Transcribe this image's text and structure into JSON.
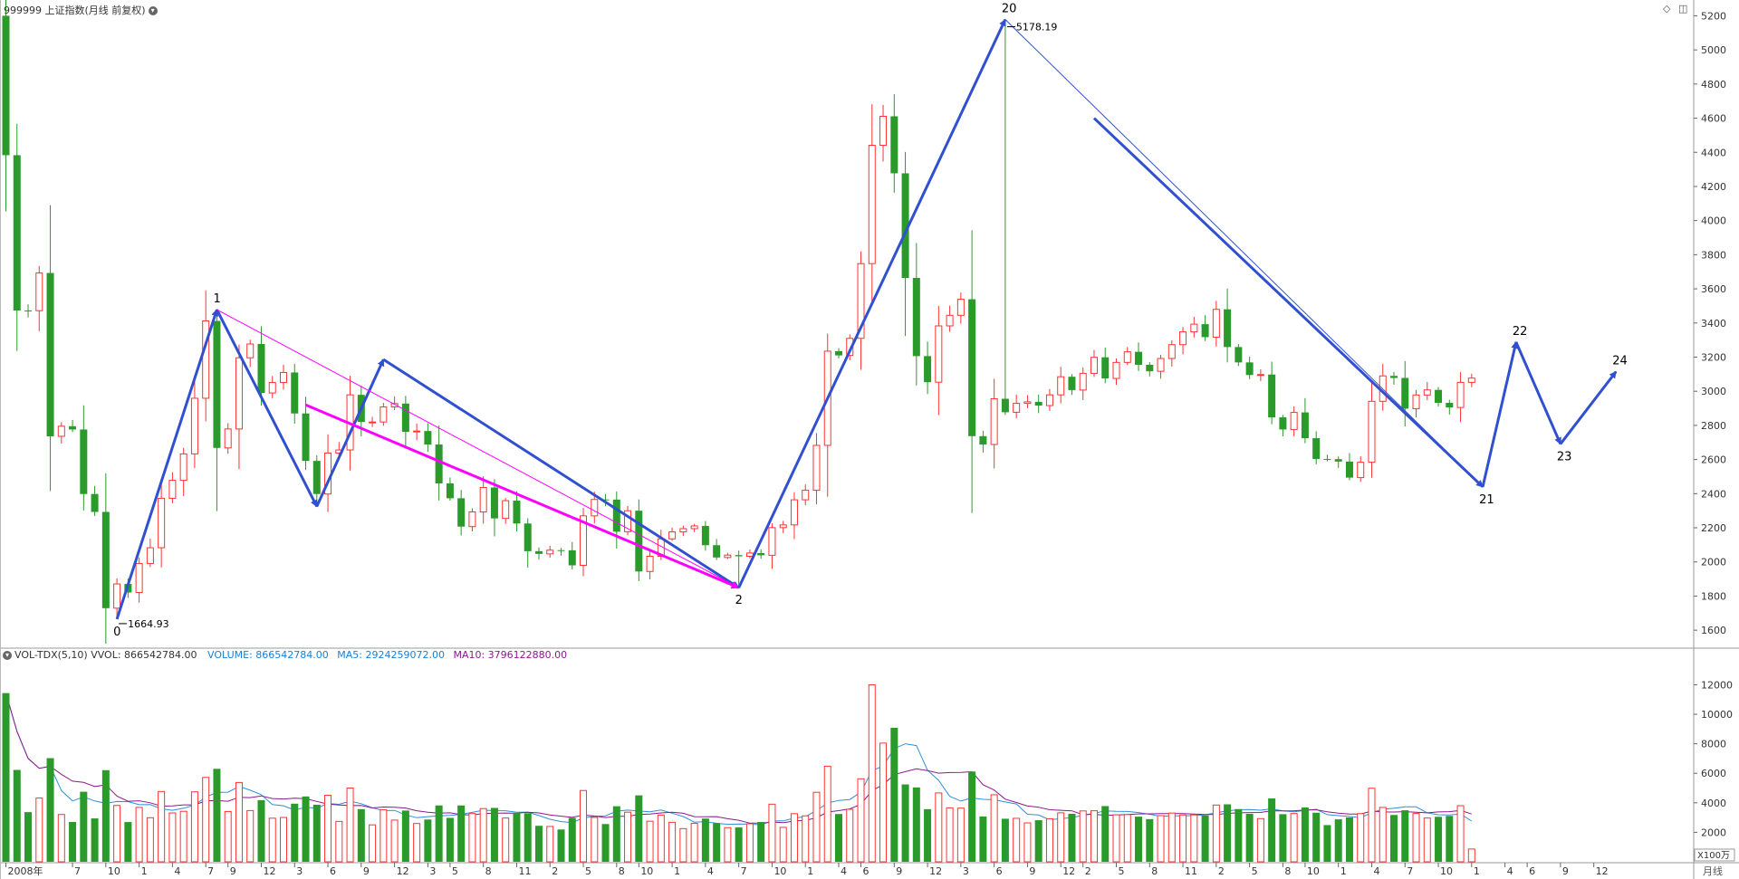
{
  "header": {
    "title": "999999 上证指数(月线 前复权)",
    "dropdown_icon": "chevron-down-icon"
  },
  "vol_header": {
    "name": "VOL-TDX(5,10)",
    "vvol": "VVOL: 866542784.00",
    "volume": "VOLUME: 866542784.00",
    "ma5": "MA5: 2924259072.00",
    "ma10": "MA10: 3796122880.00"
  },
  "colors": {
    "up": "#ff3333",
    "down": "#2a9a2a",
    "wave_blue": "#3050d0",
    "magenta": "#ff00ff",
    "vol_label": "#1a7fd1",
    "ma5": "#2f8fd8",
    "ma10": "#8b1a8b"
  },
  "corner_icons": {
    "diamond": "diamond-icon",
    "panel": "panel-icon"
  },
  "bottom_right_label": "月线",
  "vol_unit": "X100万",
  "chart_data": {
    "type": "candlestick",
    "price_axis": {
      "ticks": [
        "1600",
        "1800",
        "2000",
        "2200",
        "2400",
        "2600",
        "2800",
        "3000",
        "3200",
        "3400",
        "3600",
        "3800",
        "4000",
        "4200",
        "4400",
        "4600",
        "4800",
        "5000",
        "5200"
      ],
      "range": [
        1500,
        5250
      ]
    },
    "volume_axis": {
      "ticks": [
        "2000",
        "4000",
        "6000",
        "8000",
        "10000",
        "12000"
      ],
      "range": [
        0,
        13500
      ],
      "unit": "X100万"
    },
    "x_labels": [
      "2008年",
      "7",
      "10",
      "1",
      "4",
      "7",
      "9",
      "12",
      "3",
      "6",
      "9",
      "12",
      "3",
      "5",
      "8",
      "11",
      "2",
      "5",
      "8",
      "10",
      "1",
      "4",
      "7",
      "10",
      "1",
      "4",
      "6",
      "9",
      "12",
      "3",
      "6",
      "9",
      "12",
      "2",
      "5",
      "8",
      "11",
      "2",
      "5",
      "8",
      "10",
      "1",
      "4",
      "7",
      "10",
      "1",
      "4",
      "6",
      "9",
      "12"
    ],
    "x_label_months": [
      1,
      7,
      10,
      13,
      16,
      19,
      21,
      24,
      27,
      30,
      33,
      36,
      39,
      41,
      44,
      47,
      50,
      53,
      56,
      58,
      61,
      64,
      67,
      70,
      73,
      76,
      78,
      81,
      84,
      87,
      90,
      93,
      96,
      98,
      101,
      104,
      107,
      110,
      113,
      116,
      118,
      121,
      124,
      127,
      130,
      133,
      136,
      138,
      141,
      144
    ],
    "close": [
      4383,
      3473,
      3472,
      3693,
      2736,
      2795,
      2776,
      2398,
      2293,
      1729,
      1871,
      1821,
      1991,
      2083,
      2373,
      2478,
      2633,
      2959,
      3412,
      2668,
      2779,
      3196,
      3277,
      2990,
      3051,
      3110,
      2870,
      2592,
      2398,
      2638,
      2656,
      2979,
      2820,
      2820,
      2908,
      2928,
      2762,
      2767,
      2688,
      2460,
      2373,
      2207,
      2293,
      2436,
      2255,
      2359,
      2225,
      2063,
      2047,
      2069,
      2068,
      1980,
      2270,
      2366,
      2365,
      2177,
      2300,
      1944,
      2033,
      2135,
      2176,
      2195,
      2211,
      2098,
      2026,
      2040,
      2033,
      2052,
      2039,
      2201,
      2217,
      2364,
      2420,
      2683,
      3235,
      3210,
      3310,
      3748,
      4441,
      4611,
      4277,
      3664,
      3206,
      3053,
      3383,
      3445,
      3539,
      2737,
      2688,
      2956,
      2877,
      2929,
      2938,
      2916,
      2979,
      3085,
      3007,
      3105,
      3199,
      3075,
      3169,
      3231,
      3155,
      3117,
      3192,
      3273,
      3348,
      3393,
      3317,
      3480,
      3259,
      3169,
      3095,
      3098,
      2847,
      2776,
      2876,
      2725,
      2603,
      2602,
      2588,
      2494,
      2584,
      2941,
      3090,
      3078,
      2898,
      2978,
      3008,
      2932,
      2905,
      3052,
      3077
    ]
  },
  "waves": {
    "points": [
      {
        "label": "0",
        "month": 10,
        "price": 1664.93,
        "value_label": "1664.93"
      },
      {
        "label": "1",
        "month": 19,
        "price": 3478
      },
      {
        "label": "2",
        "month": 66,
        "price": 1849
      },
      {
        "label": "20",
        "month": 90,
        "price": 5178.19,
        "value_label": "5178.19"
      },
      {
        "label": "21",
        "month": 133,
        "price": 2440
      },
      {
        "label": "22",
        "month": 136,
        "price": 3288
      },
      {
        "label": "23",
        "month": 140,
        "price": 2691
      },
      {
        "label": "24",
        "month": 145,
        "price": 3115
      }
    ]
  }
}
